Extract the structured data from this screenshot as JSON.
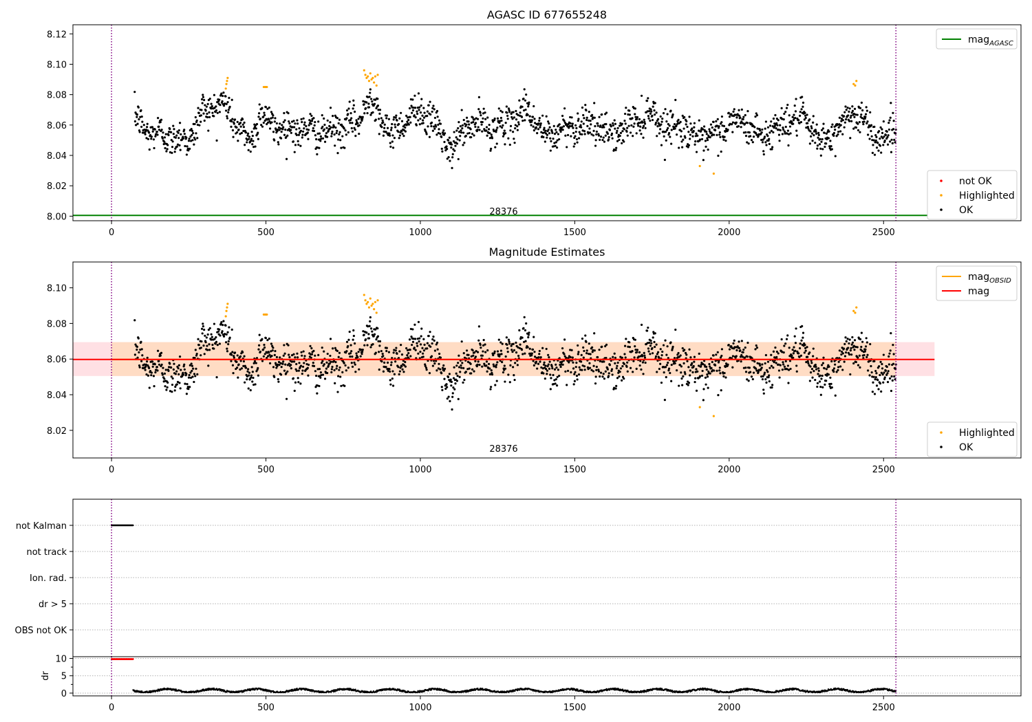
{
  "chart_data": [
    {
      "type": "scatter",
      "title": "AGASC ID 677655248",
      "xlabel": "",
      "ylabel": "",
      "xlim": [
        -125,
        2945
      ],
      "ylim": [
        7.997,
        8.126
      ],
      "x_ticks": [
        0,
        500,
        1000,
        1500,
        2000,
        2500
      ],
      "y_ticks": [
        8.0,
        8.02,
        8.04,
        8.06,
        8.08,
        8.1,
        8.12
      ],
      "y_tick_labels": [
        "8.00",
        "8.02",
        "8.04",
        "8.06",
        "8.08",
        "8.10",
        "8.12"
      ],
      "obsid_label": "28376",
      "obsid_boundaries": [
        0,
        2540
      ],
      "lines": [
        {
          "name": "mag_AGASC",
          "y": 8.0005,
          "x_range": [
            -125,
            2665
          ],
          "color": "#008000"
        }
      ],
      "legend_top": {
        "placement": "top-right",
        "entries": [
          {
            "label": "mag",
            "sub": "AGASC",
            "color": "#008000",
            "kind": "line"
          }
        ]
      },
      "legend_bottom": {
        "placement": "bottom-right",
        "entries": [
          {
            "label": "not OK",
            "color": "#ff0000",
            "kind": "dot"
          },
          {
            "label": "Highlighted",
            "color": "#ffa500",
            "kind": "dot"
          },
          {
            "label": "OK",
            "color": "#000000",
            "kind": "dot"
          }
        ]
      },
      "series": [
        {
          "name": "OK",
          "color": "#000000",
          "x_range": [
            75,
            2540
          ],
          "n_points": 1800,
          "trend": [
            [
              75,
              8.065
            ],
            [
              100,
              8.058
            ],
            [
              150,
              8.054
            ],
            [
              200,
              8.052
            ],
            [
              250,
              8.05
            ],
            [
              300,
              8.07
            ],
            [
              350,
              8.074
            ],
            [
              380,
              8.07
            ],
            [
              420,
              8.055
            ],
            [
              450,
              8.048
            ],
            [
              480,
              8.068
            ],
            [
              520,
              8.06
            ],
            [
              560,
              8.058
            ],
            [
              600,
              8.057
            ],
            [
              650,
              8.056
            ],
            [
              700,
              8.055
            ],
            [
              750,
              8.058
            ],
            [
              800,
              8.062
            ],
            [
              830,
              8.078
            ],
            [
              870,
              8.068
            ],
            [
              900,
              8.052
            ],
            [
              950,
              8.064
            ],
            [
              1000,
              8.07
            ],
            [
              1050,
              8.06
            ],
            [
              1100,
              8.042
            ],
            [
              1150,
              8.06
            ],
            [
              1200,
              8.06
            ],
            [
              1250,
              8.058
            ],
            [
              1300,
              8.062
            ],
            [
              1350,
              8.072
            ],
            [
              1400,
              8.052
            ],
            [
              1450,
              8.056
            ],
            [
              1500,
              8.06
            ],
            [
              1550,
              8.062
            ],
            [
              1600,
              8.054
            ],
            [
              1650,
              8.056
            ],
            [
              1700,
              8.064
            ],
            [
              1750,
              8.068
            ],
            [
              1800,
              8.058
            ],
            [
              1850,
              8.06
            ],
            [
              1900,
              8.05
            ],
            [
              1950,
              8.052
            ],
            [
              2000,
              8.062
            ],
            [
              2050,
              8.062
            ],
            [
              2100,
              8.052
            ],
            [
              2150,
              8.058
            ],
            [
              2200,
              8.064
            ],
            [
              2250,
              8.062
            ],
            [
              2300,
              8.048
            ],
            [
              2350,
              8.056
            ],
            [
              2400,
              8.07
            ],
            [
              2450,
              8.058
            ],
            [
              2500,
              8.05
            ],
            [
              2540,
              8.06
            ]
          ]
        },
        {
          "name": "Highlighted",
          "color": "#ffa500",
          "points": [
            [
              370,
              8.084
            ],
            [
              372,
              8.087
            ],
            [
              374,
              8.089
            ],
            [
              376,
              8.091
            ],
            [
              493,
              8.085
            ],
            [
              497,
              8.085
            ],
            [
              500,
              8.085
            ],
            [
              503,
              8.085
            ],
            [
              818,
              8.096
            ],
            [
              822,
              8.093
            ],
            [
              826,
              8.091
            ],
            [
              830,
              8.092
            ],
            [
              834,
              8.089
            ],
            [
              838,
              8.094
            ],
            [
              842,
              8.09
            ],
            [
              846,
              8.091
            ],
            [
              850,
              8.088
            ],
            [
              854,
              8.092
            ],
            [
              858,
              8.086
            ],
            [
              862,
              8.093
            ],
            [
              1905,
              8.033
            ],
            [
              1950,
              8.028
            ],
            [
              2403,
              8.087
            ],
            [
              2408,
              8.086
            ],
            [
              2412,
              8.089
            ]
          ]
        }
      ]
    },
    {
      "type": "scatter",
      "title": "Magnitude Estimates",
      "xlabel": "",
      "ylabel": "",
      "xlim": [
        -125,
        2945
      ],
      "ylim": [
        8.0045,
        8.1145
      ],
      "x_ticks": [
        0,
        500,
        1000,
        1500,
        2000,
        2500
      ],
      "y_ticks": [
        8.02,
        8.04,
        8.06,
        8.08,
        8.1
      ],
      "y_tick_labels": [
        "8.02",
        "8.04",
        "8.06",
        "8.08",
        "8.10"
      ],
      "obsid_label": "28376",
      "obsid_boundaries": [
        0,
        2540
      ],
      "bands": [
        {
          "name": "mag band",
          "y0": 8.0505,
          "y1": 8.0695,
          "x_range": [
            -125,
            2665
          ],
          "fill": "#ffe0e4"
        },
        {
          "name": "mag_OBSID band",
          "y0": 8.0505,
          "y1": 8.0695,
          "x_range": [
            0,
            2540
          ],
          "fill": "#ffdcc4"
        }
      ],
      "lines": [
        {
          "name": "mag_OBSID",
          "y": 8.0598,
          "x_range": [
            0,
            2540
          ],
          "color": "#ffa500"
        },
        {
          "name": "mag",
          "y": 8.0598,
          "x_range": [
            -125,
            2665
          ],
          "color": "#ff0000"
        }
      ],
      "legend_top": {
        "placement": "top-right",
        "entries": [
          {
            "label": "mag",
            "sub": "OBSID",
            "color": "#ffa500",
            "kind": "line"
          },
          {
            "label": "mag",
            "sub": "",
            "color": "#ff0000",
            "kind": "line"
          }
        ]
      },
      "legend_bottom": {
        "placement": "bottom-right",
        "entries": [
          {
            "label": "Highlighted",
            "color": "#ffa500",
            "kind": "dot"
          },
          {
            "label": "OK",
            "color": "#000000",
            "kind": "dot"
          }
        ]
      },
      "series": [
        {
          "name": "OK",
          "color": "#000000",
          "same_as_panel": 0
        },
        {
          "name": "Highlighted",
          "color": "#ffa500",
          "same_as_panel": 0
        }
      ]
    },
    {
      "type": "scatter",
      "title": "",
      "xlim": [
        -125,
        2945
      ],
      "categories": [
        "not Kalman",
        "not track",
        "Ion. rad.",
        "dr > 5",
        "OBS not OK"
      ],
      "flag_segments": [
        {
          "category": "not Kalman",
          "x_range": [
            0,
            70
          ],
          "color": "#000000"
        }
      ],
      "obsid_boundaries": [
        0,
        2540
      ]
    },
    {
      "type": "scatter",
      "title": "",
      "xlabel": "",
      "ylabel": "dr",
      "xlim": [
        -125,
        2945
      ],
      "ylim": [
        -0.8,
        10.5
      ],
      "x_ticks": [
        0,
        500,
        1000,
        1500,
        2000,
        2500
      ],
      "y_ticks": [
        0,
        5,
        10
      ],
      "y_tick_labels": [
        "0",
        "5",
        "10"
      ],
      "obsid_boundaries": [
        0,
        2540
      ],
      "series": [
        {
          "name": "dr high",
          "color": "#ff0000",
          "x_range": [
            0,
            70
          ],
          "y": 9.8
        },
        {
          "name": "dr",
          "color": "#000000",
          "x_range": [
            70,
            2540
          ],
          "y_range": [
            0.2,
            1.8
          ]
        }
      ]
    }
  ]
}
